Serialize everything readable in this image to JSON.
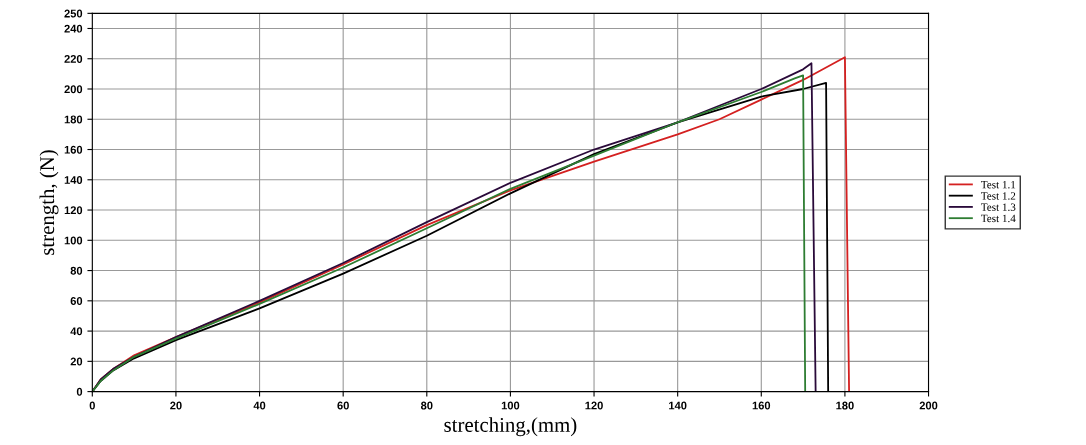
{
  "chart_data": {
    "type": "line",
    "xlabel": "stretching,(mm)",
    "ylabel": "strength, (N)",
    "xlim": [
      0,
      200
    ],
    "xticks": [
      0,
      20,
      40,
      60,
      80,
      100,
      120,
      140,
      160,
      180,
      200
    ],
    "ylim": [
      0,
      250
    ],
    "yticks": [
      0,
      20,
      40,
      60,
      80,
      100,
      120,
      140,
      160,
      180,
      200,
      220,
      240,
      250
    ],
    "grid": true,
    "legend": "right",
    "line_style": "solid",
    "series": [
      {
        "name": "Test 1.1",
        "color": "#d42020",
        "x": [
          0,
          2,
          5,
          10,
          20,
          40,
          60,
          80,
          100,
          120,
          140,
          150,
          160,
          170,
          180,
          181
        ],
        "values": [
          0,
          8,
          15,
          24,
          36,
          59,
          84,
          110,
          133,
          152,
          170,
          180,
          193,
          206,
          221,
          0
        ]
      },
      {
        "name": "Test 1.2",
        "color": "#000000",
        "x": [
          0,
          2,
          5,
          10,
          20,
          40,
          60,
          80,
          100,
          120,
          140,
          160,
          170,
          175.5,
          176
        ],
        "values": [
          0,
          7,
          14,
          22,
          34,
          55,
          78,
          103,
          131,
          157,
          178,
          195,
          200,
          204,
          0
        ]
      },
      {
        "name": "Test 1.3",
        "color": "#2a0a3a",
        "x": [
          0,
          2,
          5,
          10,
          20,
          40,
          60,
          80,
          100,
          120,
          140,
          160,
          170,
          172,
          173
        ],
        "values": [
          0,
          8,
          15,
          23,
          36,
          60,
          85,
          112,
          138,
          160,
          178,
          200,
          213,
          217,
          0
        ]
      },
      {
        "name": "Test 1.4",
        "color": "#2e7d32",
        "x": [
          0,
          2,
          5,
          10,
          20,
          40,
          60,
          80,
          100,
          120,
          140,
          160,
          168,
          170,
          170.5
        ],
        "values": [
          0,
          7,
          14,
          23,
          35,
          58,
          82,
          108,
          134,
          156,
          178,
          198,
          207,
          209,
          0
        ]
      }
    ]
  }
}
